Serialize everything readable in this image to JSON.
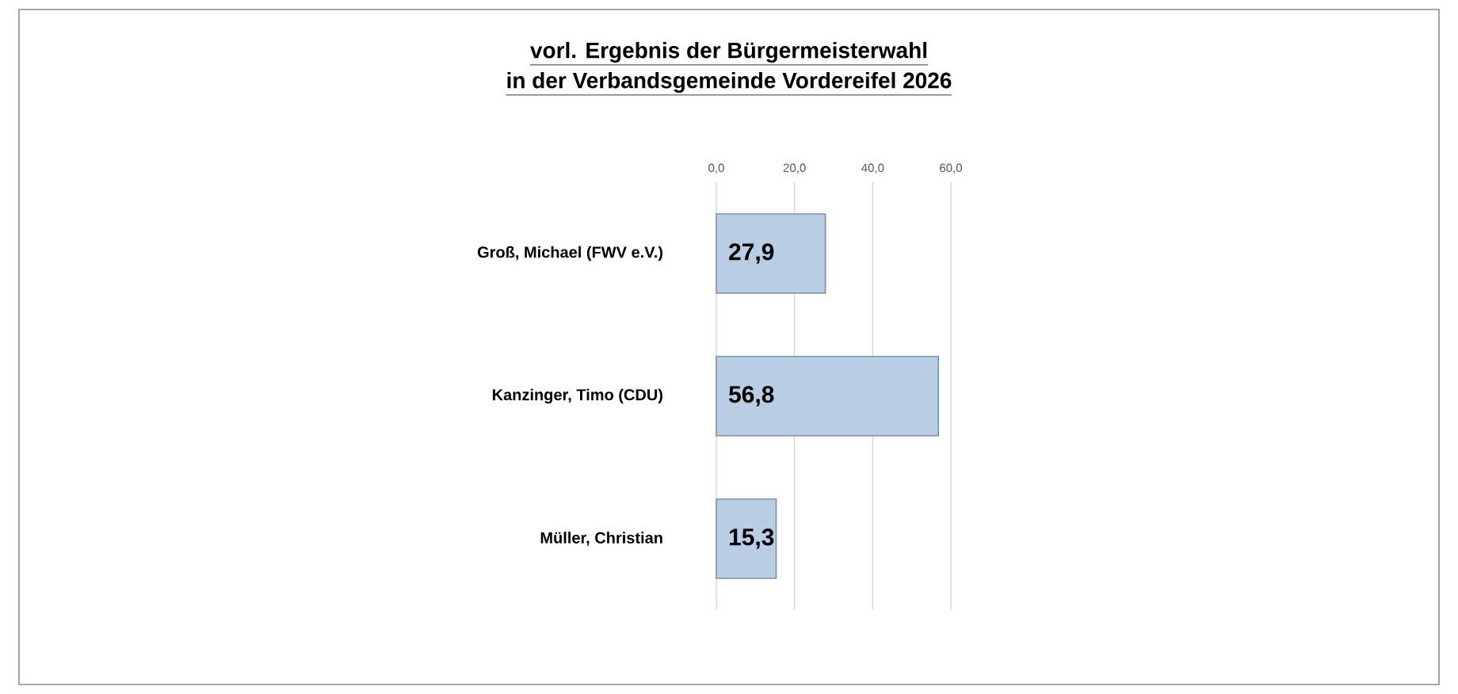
{
  "chart_data": {
    "type": "bar",
    "orientation": "horizontal",
    "title": "vorl. Ergebnis der Bürgermeisterwahl",
    "subtitle": "in der Verbandsgemeinde Vordereifel 2026",
    "categories": [
      "Groß, Michael (FWV e.V.)",
      "Kanzinger, Timo (CDU)",
      "Müller, Christian"
    ],
    "values": [
      27.9,
      56.8,
      15.3
    ],
    "value_labels": [
      "27,9",
      "56,8",
      "15,3"
    ],
    "color": "#b9cde5",
    "xlim": [
      0,
      60
    ],
    "xticks": [
      {
        "value": 0,
        "label": "0,0"
      },
      {
        "value": 20,
        "label": "20,0"
      },
      {
        "value": 40,
        "label": "40,0"
      },
      {
        "value": 60,
        "label": "60,0"
      }
    ],
    "grid": "x"
  }
}
